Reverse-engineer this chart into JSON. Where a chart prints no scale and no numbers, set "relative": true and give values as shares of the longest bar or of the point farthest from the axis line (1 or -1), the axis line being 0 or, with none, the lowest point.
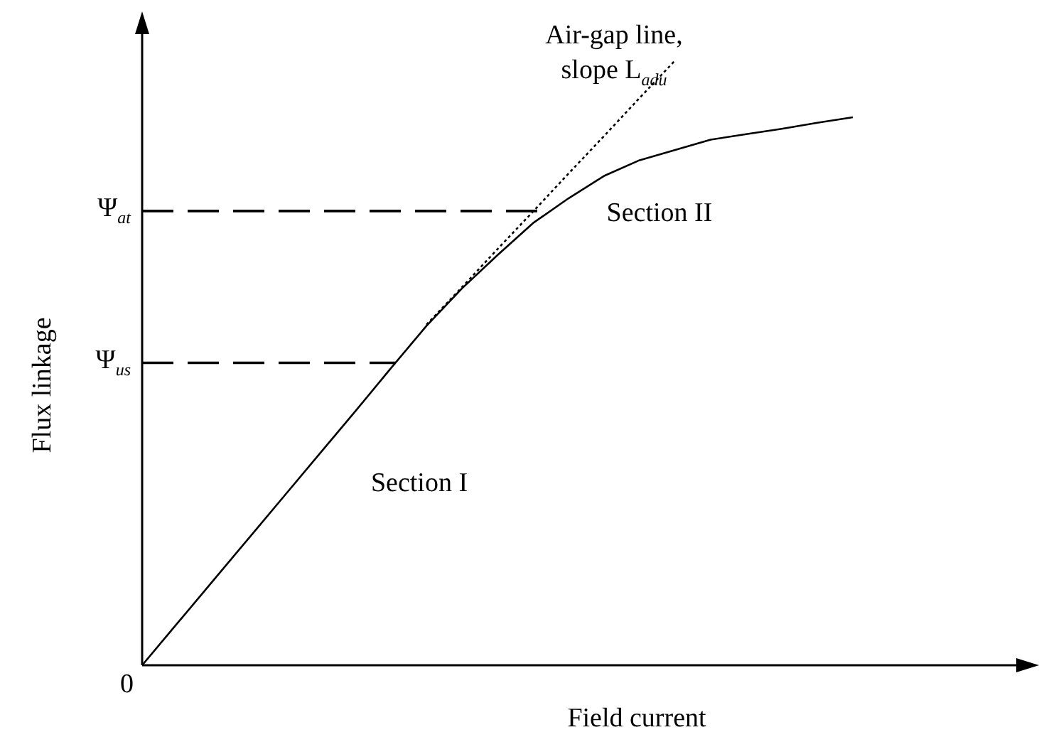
{
  "chart_data": {
    "type": "line",
    "relative": true,
    "xlabel": "Field current",
    "ylabel": "Flux linkage",
    "legend": false,
    "marker": "none",
    "categories": [
      null,
      null,
      null,
      null,
      null,
      null,
      null,
      null,
      null,
      null,
      null,
      null,
      null,
      null,
      null,
      null,
      null,
      null,
      null,
      null,
      null
    ],
    "series": [
      {
        "color": "#000000",
        "line_style": "solid",
        "values": [
          0,
          0.07,
          0.14,
          0.21,
          0.28,
          0.35,
          0.42,
          0.491,
          0.561,
          0.623,
          0.678,
          0.731,
          0.772,
          0.809,
          0.835,
          0.852,
          0.869,
          0.878,
          0.887,
          0.897,
          0.906
        ]
      },
      {
        "color": "#000000",
        "line_style": "dotted",
        "values": [
          null,
          null,
          null,
          null,
          null,
          null,
          null,
          null,
          0.563,
          0.625,
          0.688,
          0.75,
          0.813,
          0.875,
          0.938,
          1.0,
          null,
          null,
          null,
          null,
          null
        ]
      }
    ],
    "ref_lines": [
      {
        "axis": "y",
        "value": 0.751,
        "label": "Ψ$_{at}$",
        "line_style": "dashed",
        "color": "#000000"
      },
      {
        "axis": "y",
        "value": 0.5,
        "label": "Ψ$_{us}$",
        "line_style": "dashed",
        "color": "#000000"
      }
    ],
    "annotations": [
      "0",
      "Air-gap line,",
      "slope L$_{adu}$",
      "Section I",
      "Section II"
    ]
  }
}
